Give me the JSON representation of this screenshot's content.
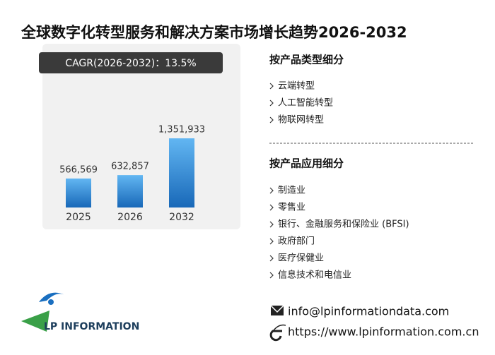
{
  "title": "全球数字化转型服务和解决方案市场增长趋势2026-2032",
  "chart_data": {
    "type": "bar",
    "cagr_label": "CAGR(2026-2032)：13.5%",
    "categories": [
      "2025",
      "2026",
      "2032"
    ],
    "values": [
      566569,
      632857,
      1351933
    ],
    "value_labels": [
      "566,569",
      "632,857",
      "1,351,933"
    ],
    "color": "#1f78c8"
  },
  "segments": [
    {
      "heading": "按产品类型细分",
      "items": [
        "云端转型",
        "人工智能转型",
        "物联网转型"
      ]
    },
    {
      "heading": "按产品应用细分",
      "items": [
        "制造业",
        "零售业",
        "银行、金融服务和保险业 (BFSI)",
        "政府部门",
        "医疗保健业",
        "信息技术和电信业"
      ]
    }
  ],
  "contact": {
    "email": "info@lpinformationdata.com",
    "website": "https://www.lpinformation.com.cn"
  },
  "logo": "LP INFORMATION"
}
